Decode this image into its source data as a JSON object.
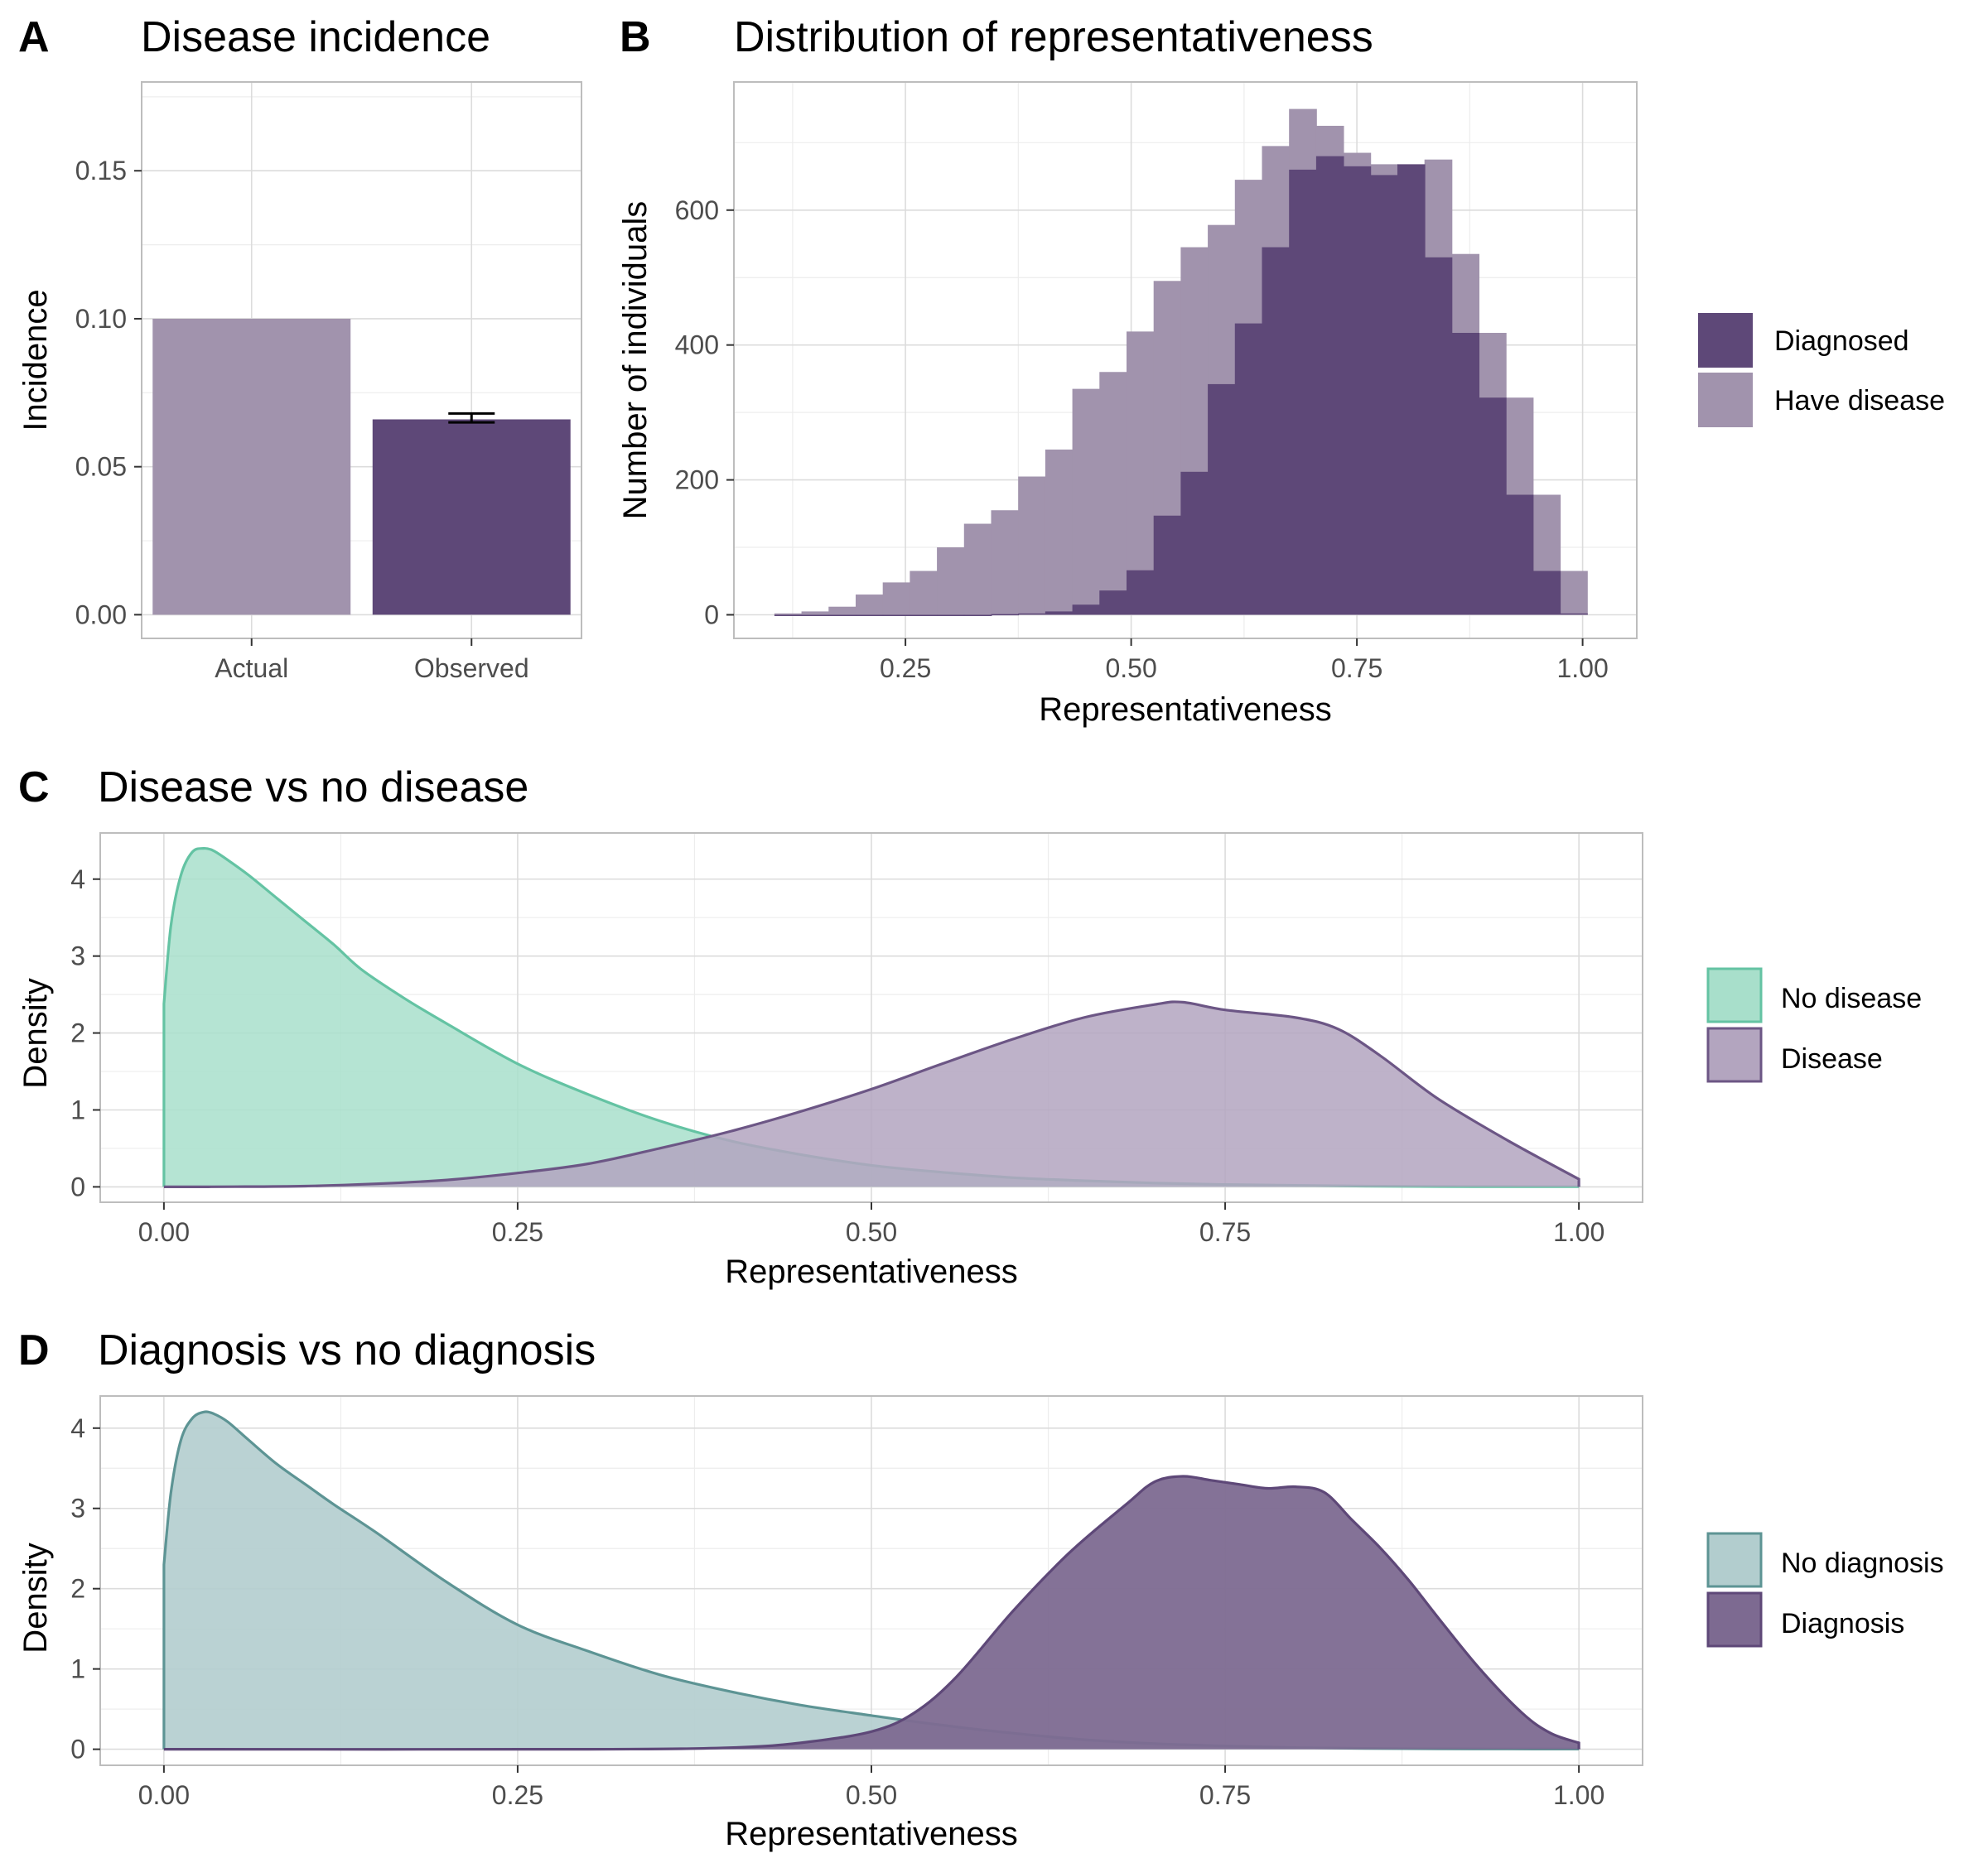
{
  "colors": {
    "diagnosed": "#5e4878",
    "have_disease": "#a193ad",
    "no_disease_fill": "#a8dfcb",
    "no_disease_line": "#64c3a3",
    "disease_fill": "#b3a5bf",
    "disease_line": "#6c5685",
    "no_diagnosis_fill": "#b2cdce",
    "no_diagnosis_line": "#5d9494",
    "diagnosis_fill": "#7d6a91",
    "diagnosis_line": "#5e4878"
  },
  "chart_data": [
    {
      "id": "A",
      "tag": "A",
      "type": "bar",
      "title": "Disease incidence",
      "xlabel": "",
      "ylabel": "Incidence",
      "categories": [
        "Actual",
        "Observed"
      ],
      "values": [
        0.1,
        0.066
      ],
      "errorbar": {
        "category": "Observed",
        "low": 0.065,
        "high": 0.068
      },
      "ylim": [
        -0.008,
        0.18
      ],
      "yticks": [
        0,
        0.05,
        0.1,
        0.15
      ],
      "ytick_labels": [
        "0.00",
        "0.05",
        "0.10",
        "0.15"
      ],
      "grid": true
    },
    {
      "id": "B",
      "tag": "B",
      "type": "bar",
      "title": "Distribution of representativeness",
      "xlabel": "Representativeness",
      "ylabel": "Number of individuals",
      "bin_width": 0.0303,
      "xlim": [
        0.06,
        1.06
      ],
      "ylim": [
        -35,
        790
      ],
      "xticks": [
        0.25,
        0.5,
        0.75,
        1.0
      ],
      "xtick_labels": [
        "0.25",
        "0.50",
        "0.75",
        "1.00"
      ],
      "yticks": [
        0,
        200,
        400,
        600
      ],
      "ytick_labels": [
        "0",
        "200",
        "400",
        "600"
      ],
      "grid": true,
      "legend_position": "right",
      "series": [
        {
          "name": "Have disease",
          "bin_centers": [
            0.12,
            0.15,
            0.18,
            0.21,
            0.24,
            0.27,
            0.3,
            0.33,
            0.36,
            0.39,
            0.42,
            0.45,
            0.48,
            0.51,
            0.54,
            0.57,
            0.6,
            0.63,
            0.66,
            0.69,
            0.72,
            0.75,
            0.78,
            0.81,
            0.84,
            0.87,
            0.9,
            0.93,
            0.96,
            0.99
          ],
          "counts": [
            2,
            5,
            12,
            30,
            48,
            65,
            100,
            135,
            155,
            205,
            245,
            335,
            360,
            420,
            495,
            545,
            578,
            645,
            695,
            750,
            725,
            685,
            668,
            658,
            675,
            535,
            418,
            322,
            178,
            65
          ]
        },
        {
          "name": "Diagnosed",
          "bin_centers": [
            0.12,
            0.15,
            0.18,
            0.21,
            0.24,
            0.27,
            0.3,
            0.33,
            0.36,
            0.39,
            0.42,
            0.45,
            0.48,
            0.51,
            0.54,
            0.57,
            0.6,
            0.63,
            0.66,
            0.69,
            0.72,
            0.75,
            0.78,
            0.81,
            0.84,
            0.87,
            0.9,
            0.93,
            0.96,
            0.99
          ],
          "counts": [
            0,
            0,
            0,
            0,
            0,
            0,
            0,
            0,
            1,
            2,
            5,
            15,
            36,
            66,
            147,
            212,
            342,
            432,
            545,
            660,
            680,
            665,
            652,
            668,
            530,
            418,
            322,
            178,
            65,
            2
          ]
        }
      ]
    },
    {
      "id": "C",
      "tag": "C",
      "type": "area",
      "title": "Disease vs no disease",
      "xlabel": "Representativeness",
      "ylabel": "Density",
      "xlim": [
        -0.045,
        1.045
      ],
      "ylim": [
        -0.2,
        4.6
      ],
      "xticks": [
        0,
        0.25,
        0.5,
        0.75,
        1.0
      ],
      "xtick_labels": [
        "0.00",
        "0.25",
        "0.50",
        "0.75",
        "1.00"
      ],
      "yticks": [
        0,
        1,
        2,
        3,
        4
      ],
      "ytick_labels": [
        "0",
        "1",
        "2",
        "3",
        "4"
      ],
      "grid": true,
      "legend_position": "right",
      "series": [
        {
          "name": "No disease",
          "x": [
            0,
            0.005,
            0.012,
            0.02,
            0.028,
            0.035,
            0.045,
            0.06,
            0.08,
            0.1,
            0.12,
            0.14,
            0.17,
            0.2,
            0.25,
            0.3,
            0.35,
            0.4,
            0.45,
            0.5,
            0.55,
            0.6,
            0.65,
            0.7,
            0.75,
            0.8,
            0.85,
            0.9,
            0.95,
            1.0
          ],
          "y": [
            2.38,
            3.4,
            4.05,
            4.35,
            4.4,
            4.37,
            4.25,
            4.05,
            3.75,
            3.45,
            3.15,
            2.82,
            2.45,
            2.12,
            1.6,
            1.2,
            0.86,
            0.6,
            0.42,
            0.28,
            0.19,
            0.12,
            0.08,
            0.05,
            0.03,
            0.02,
            0.01,
            0.005,
            0.003,
            0.002
          ]
        },
        {
          "name": "Disease",
          "x": [
            0,
            0.05,
            0.1,
            0.15,
            0.2,
            0.25,
            0.3,
            0.35,
            0.4,
            0.45,
            0.5,
            0.55,
            0.6,
            0.65,
            0.7,
            0.72,
            0.75,
            0.8,
            0.83,
            0.86,
            0.9,
            0.95,
            1.0
          ],
          "y": [
            0.0,
            0.002,
            0.01,
            0.04,
            0.09,
            0.18,
            0.3,
            0.5,
            0.72,
            0.98,
            1.27,
            1.6,
            1.92,
            2.2,
            2.37,
            2.4,
            2.3,
            2.2,
            2.05,
            1.7,
            1.15,
            0.6,
            0.1
          ]
        }
      ]
    },
    {
      "id": "D",
      "tag": "D",
      "type": "area",
      "title": "Diagnosis vs no diagnosis",
      "xlabel": "Representativeness",
      "ylabel": "Density",
      "xlim": [
        -0.045,
        1.045
      ],
      "ylim": [
        -0.2,
        4.4
      ],
      "xticks": [
        0,
        0.25,
        0.5,
        0.75,
        1.0
      ],
      "xtick_labels": [
        "0.00",
        "0.25",
        "0.50",
        "0.75",
        "1.00"
      ],
      "yticks": [
        0,
        1,
        2,
        3,
        4
      ],
      "ytick_labels": [
        "0",
        "1",
        "2",
        "3",
        "4"
      ],
      "grid": true,
      "legend_position": "right",
      "series": [
        {
          "name": "No diagnosis",
          "x": [
            0,
            0.005,
            0.012,
            0.02,
            0.028,
            0.035,
            0.045,
            0.06,
            0.08,
            0.1,
            0.12,
            0.15,
            0.2,
            0.25,
            0.3,
            0.35,
            0.4,
            0.45,
            0.5,
            0.55,
            0.6,
            0.65,
            0.7,
            0.75,
            0.8,
            0.85,
            0.9,
            0.95,
            1.0
          ],
          "y": [
            2.3,
            3.2,
            3.85,
            4.12,
            4.2,
            4.18,
            4.08,
            3.85,
            3.55,
            3.3,
            3.05,
            2.7,
            2.08,
            1.55,
            1.22,
            0.93,
            0.72,
            0.55,
            0.42,
            0.3,
            0.2,
            0.12,
            0.07,
            0.04,
            0.02,
            0.01,
            0.005,
            0.003,
            0.002
          ]
        },
        {
          "name": "Diagnosis",
          "x": [
            0,
            0.3,
            0.4,
            0.45,
            0.5,
            0.53,
            0.56,
            0.6,
            0.64,
            0.68,
            0.7,
            0.72,
            0.74,
            0.76,
            0.78,
            0.8,
            0.82,
            0.84,
            0.86,
            0.88,
            0.9,
            0.93,
            0.96,
            0.98,
            1.0
          ],
          "y": [
            0.0,
            0.0,
            0.02,
            0.08,
            0.22,
            0.45,
            0.9,
            1.72,
            2.45,
            3.05,
            3.33,
            3.4,
            3.35,
            3.3,
            3.25,
            3.27,
            3.2,
            2.85,
            2.5,
            2.1,
            1.65,
            1.0,
            0.45,
            0.2,
            0.08
          ]
        }
      ]
    }
  ]
}
